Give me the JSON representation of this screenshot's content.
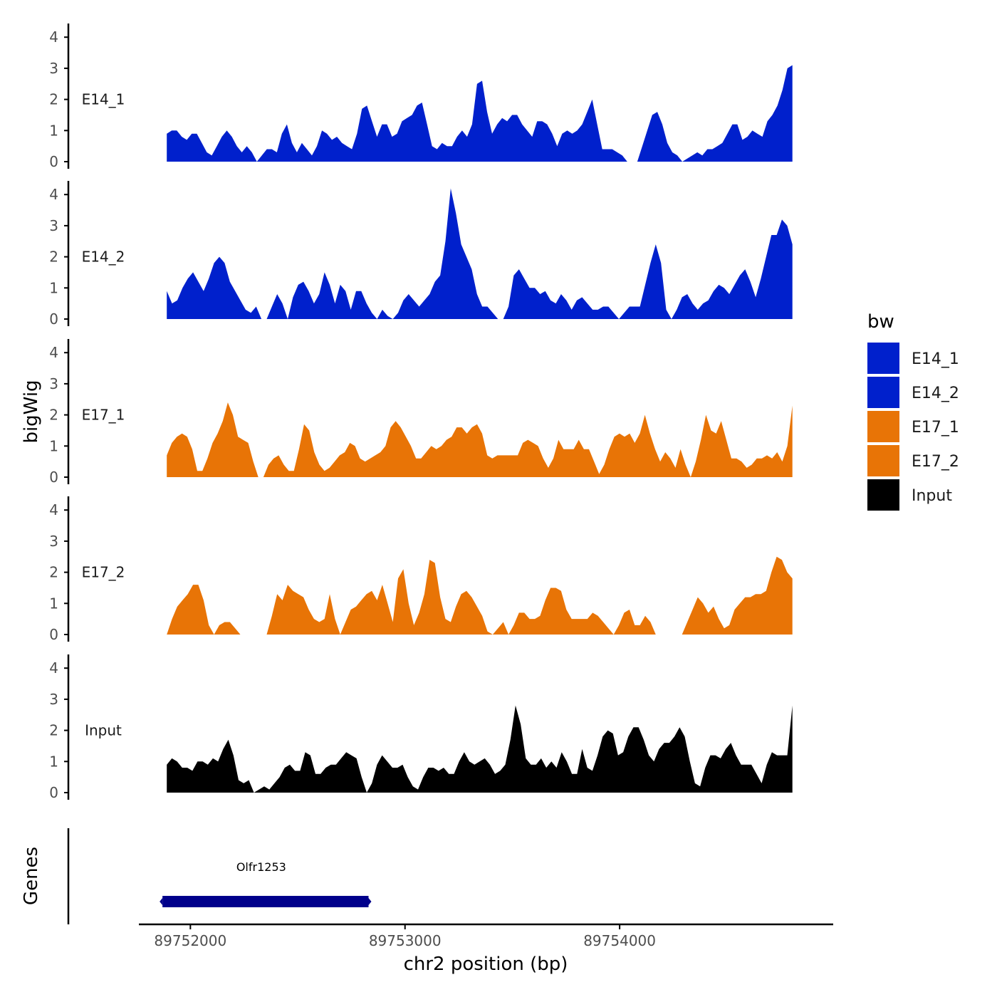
{
  "chart_data": {
    "type": "area",
    "ylabel": "bigWig",
    "xlabel": "chr2 position (bp)",
    "x_tick_labels": [
      "89752000",
      "89753000",
      "89754000"
    ],
    "x_ticks": [
      89752000,
      89753000,
      89754000
    ],
    "xlim": [
      89751760,
      89754995
    ],
    "x_start": 89751890,
    "x_end": 89754805,
    "ylim": [
      0,
      4.5
    ],
    "y_ticks": [
      0,
      1,
      2,
      3,
      4
    ],
    "y_tick_labels": [
      "0",
      "1",
      "2",
      "3",
      "4"
    ],
    "legend_title": "bw",
    "series": [
      {
        "name": "E14_1",
        "color": "#0020CC",
        "values": [
          0.9,
          1.0,
          1.0,
          0.8,
          0.7,
          0.9,
          0.9,
          0.6,
          0.3,
          0.2,
          0.5,
          0.8,
          1.0,
          0.8,
          0.5,
          0.3,
          0.5,
          0.3,
          0.0,
          0.2,
          0.4,
          0.4,
          0.3,
          0.9,
          1.2,
          0.6,
          0.3,
          0.6,
          0.4,
          0.2,
          0.5,
          1.0,
          0.9,
          0.7,
          0.8,
          0.6,
          0.5,
          0.4,
          0.9,
          1.7,
          1.8,
          1.3,
          0.8,
          1.2,
          1.2,
          0.8,
          0.9,
          1.3,
          1.4,
          1.5,
          1.8,
          1.9,
          1.2,
          0.5,
          0.4,
          0.6,
          0.5,
          0.5,
          0.8,
          1.0,
          0.8,
          1.2,
          2.5,
          2.6,
          1.6,
          0.9,
          1.2,
          1.4,
          1.3,
          1.5,
          1.5,
          1.2,
          1.0,
          0.8,
          1.3,
          1.3,
          1.2,
          0.9,
          0.5,
          0.9,
          1.0,
          0.9,
          1.0,
          1.2,
          1.6,
          2.0,
          1.2,
          0.4,
          0.4,
          0.4,
          0.3,
          0.2,
          0.0,
          0.0,
          0.0,
          0.5,
          1.0,
          1.5,
          1.6,
          1.2,
          0.6,
          0.3,
          0.2,
          0.0,
          0.1,
          0.2,
          0.3,
          0.2,
          0.4,
          0.4,
          0.5,
          0.6,
          0.9,
          1.2,
          1.2,
          0.7,
          0.8,
          1.0,
          0.9,
          0.8,
          1.3,
          1.5,
          1.8,
          2.3,
          3.0,
          3.1
        ]
      },
      {
        "name": "E14_2",
        "color": "#0020CC",
        "values": [
          0.9,
          0.5,
          0.6,
          1.0,
          1.3,
          1.5,
          1.2,
          0.9,
          1.3,
          1.8,
          2.0,
          1.8,
          1.2,
          0.9,
          0.6,
          0.3,
          0.2,
          0.4,
          0.0,
          0.0,
          0.4,
          0.8,
          0.5,
          0.0,
          0.7,
          1.1,
          1.2,
          0.9,
          0.5,
          0.8,
          1.5,
          1.1,
          0.5,
          1.1,
          0.9,
          0.3,
          0.9,
          0.9,
          0.5,
          0.2,
          0.0,
          0.3,
          0.1,
          0.0,
          0.2,
          0.6,
          0.8,
          0.6,
          0.4,
          0.6,
          0.8,
          1.2,
          1.4,
          2.5,
          4.2,
          3.4,
          2.4,
          2.0,
          1.6,
          0.8,
          0.4,
          0.4,
          0.2,
          0.0,
          0.0,
          0.4,
          1.4,
          1.6,
          1.3,
          1.0,
          1.0,
          0.8,
          0.9,
          0.6,
          0.5,
          0.8,
          0.6,
          0.3,
          0.6,
          0.7,
          0.5,
          0.3,
          0.3,
          0.4,
          0.4,
          0.2,
          0.0,
          0.2,
          0.4,
          0.4,
          0.4,
          1.1,
          1.8,
          2.4,
          1.8,
          0.3,
          0.0,
          0.3,
          0.7,
          0.8,
          0.5,
          0.3,
          0.5,
          0.6,
          0.9,
          1.1,
          1.0,
          0.8,
          1.1,
          1.4,
          1.6,
          1.2,
          0.7,
          1.3,
          2.0,
          2.7,
          2.7,
          3.2,
          3.0,
          2.4
        ]
      },
      {
        "name": "E17_1",
        "color": "#E87406",
        "values": [
          0.7,
          1.1,
          1.3,
          1.4,
          1.3,
          0.9,
          0.2,
          0.2,
          0.6,
          1.1,
          1.4,
          1.8,
          2.4,
          2.0,
          1.3,
          1.2,
          1.1,
          0.5,
          0.0,
          0.0,
          0.4,
          0.6,
          0.7,
          0.4,
          0.2,
          0.2,
          0.9,
          1.7,
          1.5,
          0.8,
          0.4,
          0.2,
          0.3,
          0.5,
          0.7,
          0.8,
          1.1,
          1.0,
          0.6,
          0.5,
          0.6,
          0.7,
          0.8,
          1.0,
          1.6,
          1.8,
          1.6,
          1.3,
          1.0,
          0.6,
          0.6,
          0.8,
          1.0,
          0.9,
          1.0,
          1.2,
          1.3,
          1.6,
          1.6,
          1.4,
          1.6,
          1.7,
          1.4,
          0.7,
          0.6,
          0.7,
          0.7,
          0.7,
          0.7,
          0.7,
          1.1,
          1.2,
          1.1,
          1.0,
          0.6,
          0.3,
          0.6,
          1.2,
          0.9,
          0.9,
          0.9,
          1.2,
          0.9,
          0.9,
          0.5,
          0.1,
          0.4,
          0.9,
          1.3,
          1.4,
          1.3,
          1.4,
          1.1,
          1.4,
          2.0,
          1.4,
          0.9,
          0.5,
          0.8,
          0.6,
          0.3,
          0.9,
          0.4,
          0.0,
          0.5,
          1.2,
          2.0,
          1.5,
          1.4,
          1.8,
          1.2,
          0.6,
          0.6,
          0.5,
          0.3,
          0.4,
          0.6,
          0.6,
          0.7,
          0.6,
          0.8,
          0.5,
          1.0,
          2.3
        ]
      },
      {
        "name": "E17_2",
        "color": "#E87406",
        "values": [
          0.0,
          0.5,
          0.9,
          1.1,
          1.3,
          1.6,
          1.6,
          1.1,
          0.3,
          0.0,
          0.3,
          0.4,
          0.4,
          0.2,
          0.0,
          null,
          null,
          null,
          null,
          0.0,
          0.6,
          1.3,
          1.1,
          1.6,
          1.4,
          1.3,
          1.2,
          0.8,
          0.5,
          0.4,
          0.5,
          1.3,
          0.5,
          0.0,
          0.4,
          0.8,
          0.9,
          1.1,
          1.3,
          1.4,
          1.1,
          1.6,
          1.0,
          0.4,
          1.8,
          2.1,
          1.0,
          0.3,
          0.7,
          1.3,
          2.4,
          2.3,
          1.2,
          0.5,
          0.4,
          0.9,
          1.3,
          1.4,
          1.2,
          0.9,
          0.6,
          0.1,
          0.0,
          0.2,
          0.4,
          0.0,
          0.3,
          0.7,
          0.7,
          0.5,
          0.5,
          0.6,
          1.1,
          1.5,
          1.5,
          1.4,
          0.8,
          0.5,
          0.5,
          0.5,
          0.5,
          0.7,
          0.6,
          0.4,
          0.2,
          0.0,
          0.3,
          0.7,
          0.8,
          0.3,
          0.3,
          0.6,
          0.4,
          0.0,
          null,
          null,
          null,
          null,
          0.0,
          0.4,
          0.8,
          1.2,
          1.0,
          0.7,
          0.9,
          0.5,
          0.2,
          0.3,
          0.8,
          1.0,
          1.2,
          1.2,
          1.3,
          1.3,
          1.4,
          2.0,
          2.5,
          2.4,
          2.0,
          1.8
        ]
      },
      {
        "name": "Input",
        "color": "#000000",
        "values": [
          0.9,
          1.1,
          1.0,
          0.8,
          0.8,
          0.7,
          1.0,
          1.0,
          0.9,
          1.1,
          1.0,
          1.4,
          1.7,
          1.2,
          0.4,
          0.3,
          0.4,
          0.0,
          0.1,
          0.2,
          0.1,
          0.3,
          0.5,
          0.8,
          0.9,
          0.7,
          0.7,
          1.3,
          1.2,
          0.6,
          0.6,
          0.8,
          0.9,
          0.9,
          1.1,
          1.3,
          1.2,
          1.1,
          0.5,
          0.0,
          0.3,
          0.9,
          1.2,
          1.0,
          0.8,
          0.8,
          0.9,
          0.5,
          0.2,
          0.1,
          0.5,
          0.8,
          0.8,
          0.7,
          0.8,
          0.6,
          0.6,
          1.0,
          1.3,
          1.0,
          0.9,
          1.0,
          1.1,
          0.9,
          0.6,
          0.7,
          0.9,
          1.7,
          2.8,
          2.2,
          1.1,
          0.9,
          0.9,
          1.1,
          0.8,
          1.0,
          0.8,
          1.3,
          1.0,
          0.6,
          0.6,
          1.4,
          0.8,
          0.7,
          1.2,
          1.8,
          2.0,
          1.9,
          1.2,
          1.3,
          1.8,
          2.1,
          2.1,
          1.7,
          1.2,
          1.0,
          1.4,
          1.6,
          1.6,
          1.8,
          2.1,
          1.8,
          1.0,
          0.3,
          0.2,
          0.8,
          1.2,
          1.2,
          1.1,
          1.4,
          1.6,
          1.2,
          0.9,
          0.9,
          0.9,
          0.6,
          0.3,
          0.9,
          1.3,
          1.2,
          1.2,
          1.2,
          2.8
        ]
      }
    ],
    "genes": [
      {
        "name": "Olfr1253",
        "start": 89751870,
        "end": 89752830
      }
    ],
    "genes_track_label": "Genes",
    "gene_color": "#00008B"
  }
}
